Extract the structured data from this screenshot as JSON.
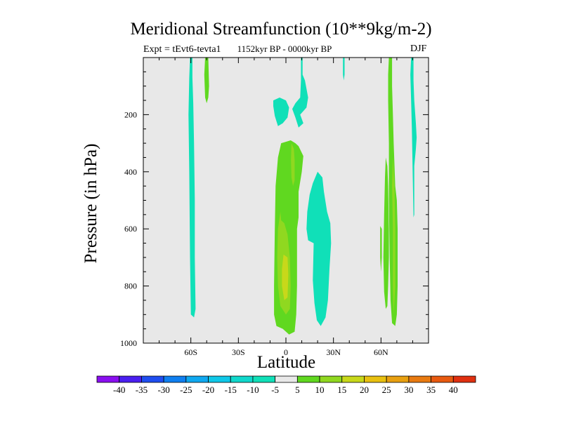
{
  "chart_data": {
    "type": "heatmap",
    "title": "Meridional Streamfunction (10**9kg/m-2)",
    "subtitle": "1152kyr BP - 0000kyr BP",
    "experiment": "Expt = tEvt6-tevta1",
    "season": "DJF",
    "xlabel": "Latitude",
    "ylabel": "Pressure (in hPa)",
    "xlim": [
      -90,
      90
    ],
    "ylim": [
      1000,
      0
    ],
    "x_ticks": [
      {
        "value": -60,
        "label": "60S"
      },
      {
        "value": -30,
        "label": "30S"
      },
      {
        "value": 0,
        "label": "0"
      },
      {
        "value": 30,
        "label": "30N"
      },
      {
        "value": 60,
        "label": "60N"
      }
    ],
    "y_ticks": [
      {
        "value": 200,
        "label": "200"
      },
      {
        "value": 400,
        "label": "400"
      },
      {
        "value": 600,
        "label": "600"
      },
      {
        "value": 800,
        "label": "800"
      },
      {
        "value": 1000,
        "label": "1000"
      }
    ],
    "background_color": "#e8e8e8",
    "colorbar": {
      "labels": [
        "-40",
        "-35",
        "-30",
        "-25",
        "-20",
        "-15",
        "-10",
        "-5",
        "5",
        "10",
        "15",
        "20",
        "25",
        "30",
        "35",
        "40"
      ],
      "colors": [
        "#8a0ff0",
        "#4a1ff0",
        "#1f4ef0",
        "#0f7ff0",
        "#0fa8f0",
        "#0fc8e8",
        "#10d8cc",
        "#10e0b8",
        "#e8e8e8",
        "#60d820",
        "#90d820",
        "#c8d81a",
        "#e8c010",
        "#e8a010",
        "#e87a10",
        "#e85a10",
        "#e03010"
      ]
    },
    "regions": [
      {
        "name": "sh-high-lat-negative",
        "value": -7.5,
        "points": [
          [
            -60.5,
            0
          ],
          [
            -59,
            0
          ],
          [
            -59,
            70
          ],
          [
            -58.5,
            160
          ],
          [
            -58,
            300
          ],
          [
            -57.5,
            500
          ],
          [
            -57.5,
            700
          ],
          [
            -57,
            880
          ],
          [
            -58,
            910
          ],
          [
            -60,
            900
          ],
          [
            -60.5,
            700
          ],
          [
            -61,
            400
          ],
          [
            -61.5,
            200
          ],
          [
            -61,
            70
          ]
        ]
      },
      {
        "name": "sh-mid-lat-positive",
        "value": 7.5,
        "points": [
          [
            -51,
            0
          ],
          [
            -49,
            0
          ],
          [
            -48.5,
            100
          ],
          [
            -49,
            140
          ],
          [
            -50,
            160
          ],
          [
            -51,
            140
          ],
          [
            -51.5,
            60
          ]
        ]
      },
      {
        "name": "eq-upper-negative-1",
        "value": -7.5,
        "points": [
          [
            -8,
            150
          ],
          [
            -4,
            140
          ],
          [
            0,
            150
          ],
          [
            2,
            175
          ],
          [
            1,
            210
          ],
          [
            -2,
            230
          ],
          [
            -5,
            240
          ],
          [
            -7,
            205
          ],
          [
            -8,
            170
          ]
        ]
      },
      {
        "name": "eq-upper-negative-2",
        "value": -7.5,
        "points": [
          [
            9.5,
            0
          ],
          [
            10.5,
            0
          ],
          [
            10.5,
            60
          ],
          [
            12,
            80
          ],
          [
            14,
            140
          ],
          [
            13,
            175
          ],
          [
            9,
            200
          ],
          [
            11,
            230
          ],
          [
            8,
            245
          ],
          [
            6,
            210
          ],
          [
            4,
            180
          ],
          [
            6,
            160
          ],
          [
            9,
            140
          ],
          [
            9.5,
            80
          ]
        ]
      },
      {
        "name": "eq-positive",
        "value": 7.5,
        "points": [
          [
            -3,
            300
          ],
          [
            3,
            290
          ],
          [
            6,
            300
          ],
          [
            8,
            310
          ],
          [
            11,
            345
          ],
          [
            10,
            400
          ],
          [
            8,
            470
          ],
          [
            8,
            560
          ],
          [
            7,
            600
          ],
          [
            7,
            700
          ],
          [
            7,
            800
          ],
          [
            6.5,
            900
          ],
          [
            5.5,
            960
          ],
          [
            2,
            970
          ],
          [
            -2,
            950
          ],
          [
            -6,
            940
          ],
          [
            -7.5,
            900
          ],
          [
            -7.5,
            800
          ],
          [
            -7,
            600
          ],
          [
            -6.5,
            450
          ],
          [
            -5,
            350
          ]
        ]
      },
      {
        "name": "eq-mid-positive",
        "value": 12.5,
        "points": [
          [
            -3.5,
            540
          ],
          [
            -3,
            570
          ],
          [
            -1,
            580
          ],
          [
            1,
            620
          ],
          [
            2.5,
            700
          ],
          [
            3,
            800
          ],
          [
            2.5,
            880
          ],
          [
            0,
            900
          ],
          [
            -3.5,
            870
          ],
          [
            -5,
            800
          ],
          [
            -5.5,
            700
          ],
          [
            -5,
            600
          ]
        ]
      },
      {
        "name": "eq-upper-inner-positive",
        "value": 12.5,
        "points": [
          [
            3.5,
            300
          ],
          [
            5,
            320
          ],
          [
            5.5,
            360
          ],
          [
            5.5,
            430
          ],
          [
            4.5,
            450
          ],
          [
            3.5,
            420
          ],
          [
            3.2,
            360
          ]
        ]
      },
      {
        "name": "eq-core-positive",
        "value": 17.5,
        "points": [
          [
            -1.5,
            690
          ],
          [
            1,
            700
          ],
          [
            1.5,
            760
          ],
          [
            1,
            840
          ],
          [
            -1,
            850
          ],
          [
            -2.5,
            800
          ],
          [
            -2.5,
            740
          ]
        ]
      },
      {
        "name": "nh-subtropics-negative",
        "value": -7.5,
        "points": [
          [
            20,
            400
          ],
          [
            23,
            420
          ],
          [
            24,
            470
          ],
          [
            26,
            540
          ],
          [
            28,
            580
          ],
          [
            28.5,
            650
          ],
          [
            27.5,
            740
          ],
          [
            26.5,
            850
          ],
          [
            25,
            910
          ],
          [
            22,
            940
          ],
          [
            19.5,
            920
          ],
          [
            18,
            860
          ],
          [
            17,
            780
          ],
          [
            17.5,
            650
          ],
          [
            14,
            640
          ],
          [
            13,
            600
          ],
          [
            13.5,
            540
          ],
          [
            15,
            480
          ],
          [
            17,
            440
          ]
        ]
      },
      {
        "name": "nh-subtropics-upper-negative",
        "value": -7.5,
        "points": [
          [
            36,
            0
          ],
          [
            37,
            0
          ],
          [
            37,
            60
          ],
          [
            36.5,
            80
          ],
          [
            36,
            60
          ]
        ]
      },
      {
        "name": "nh-high-lat-positive-1",
        "value": 7.5,
        "points": [
          [
            65,
            0
          ],
          [
            67,
            0
          ],
          [
            67,
            100
          ],
          [
            67.5,
            200
          ],
          [
            68,
            300
          ],
          [
            69,
            450
          ],
          [
            70,
            500
          ],
          [
            70.5,
            600
          ],
          [
            70.5,
            800
          ],
          [
            70,
            900
          ],
          [
            69,
            940
          ],
          [
            67,
            930
          ],
          [
            66,
            850
          ],
          [
            65.5,
            700
          ],
          [
            65,
            500
          ],
          [
            65,
            300
          ],
          [
            64.5,
            150
          ],
          [
            64.5,
            60
          ]
        ]
      },
      {
        "name": "nh-high-lat-positive-2",
        "value": 7.5,
        "points": [
          [
            63,
            350
          ],
          [
            64,
            380
          ],
          [
            64.5,
            450
          ],
          [
            65,
            600
          ],
          [
            65,
            700
          ],
          [
            64.5,
            800
          ],
          [
            64,
            870
          ],
          [
            63,
            880
          ],
          [
            62,
            820
          ],
          [
            61.5,
            700
          ],
          [
            62,
            550
          ],
          [
            62.5,
            420
          ]
        ]
      },
      {
        "name": "nh-high-lat-positive-3",
        "value": 7.5,
        "points": [
          [
            59.5,
            590
          ],
          [
            60.5,
            600
          ],
          [
            60.5,
            700
          ],
          [
            60,
            750
          ],
          [
            59.5,
            700
          ],
          [
            59.5,
            640
          ]
        ]
      },
      {
        "name": "nh-high-lat-inner-positive",
        "value": 12.5,
        "points": [
          [
            67.5,
            350
          ],
          [
            68.5,
            450
          ],
          [
            69,
            600
          ],
          [
            69,
            800
          ],
          [
            68,
            900
          ],
          [
            67.5,
            800
          ],
          [
            67.5,
            600
          ],
          [
            67,
            450
          ]
        ]
      },
      {
        "name": "nh-polar-negative",
        "value": -7.5,
        "points": [
          [
            79,
            0
          ],
          [
            80.5,
            0
          ],
          [
            80.5,
            80
          ],
          [
            81,
            150
          ],
          [
            82,
            230
          ],
          [
            82.5,
            280
          ],
          [
            82,
            320
          ],
          [
            81,
            380
          ],
          [
            81,
            550
          ],
          [
            80.5,
            560
          ],
          [
            80,
            400
          ],
          [
            79.5,
            250
          ],
          [
            79,
            150
          ],
          [
            78.5,
            60
          ]
        ]
      }
    ]
  }
}
